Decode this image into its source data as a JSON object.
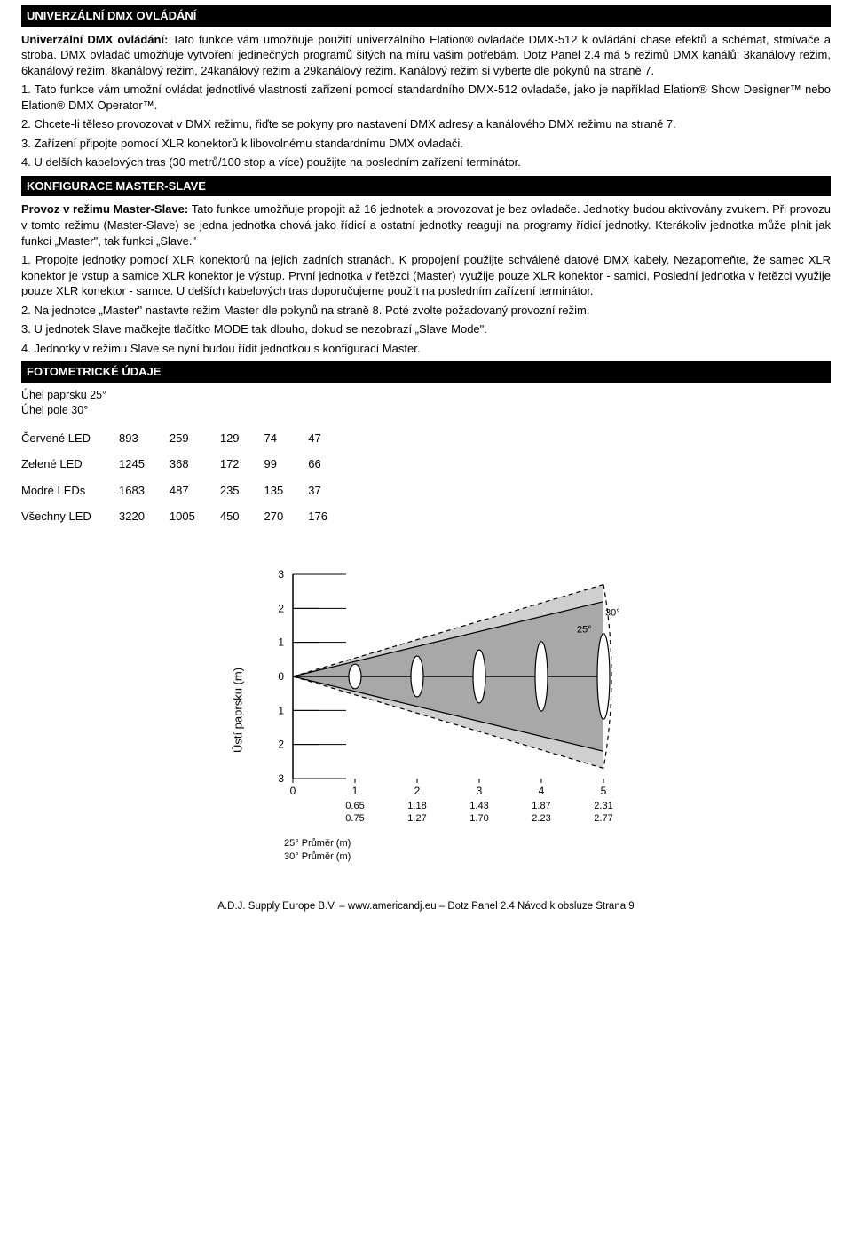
{
  "section1": {
    "title": "UNIVERZÁLNÍ DMX OVLÁDÁNÍ",
    "p1_lead": "Univerzální DMX ovládání:",
    "p1": " Tato funkce vám umožňuje použití univerzálního Elation® ovladače DMX-512 k ovládání chase efektů a schémat, stmívače a stroba. DMX ovladač umožňuje vytvoření jedinečných programů šitých na míru vašim potřebám. Dotz Panel 2.4 má 5 režimů DMX kanálů: 3kanálový režim, 6kanálový režim, 8kanálový režim, 24kanálový režim a 29kanálový režim. Kanálový režim si vyberte dle pokynů na straně 7.",
    "p2": "1. Tato funkce vám umožní ovládat jednotlivé vlastnosti zařízení pomocí standardního DMX-512 ovladače, jako je například Elation® Show Designer™ nebo Elation® DMX Operator™.",
    "p3": "2. Chcete-li těleso provozovat v DMX režimu, řiďte se pokyny pro nastavení DMX adresy a kanálového DMX režimu na straně 7.",
    "p4": "3. Zařízení připojte pomocí XLR konektorů k libovolnému standardnímu DMX ovladači.",
    "p5": "4. U delších kabelových tras (30 metrů/100 stop a více) použijte na posledním zařízení terminátor."
  },
  "section2": {
    "title": "KONFIGURACE MASTER-SLAVE",
    "p1_lead": "Provoz v režimu Master-Slave:",
    "p1": " Tato funkce umožňuje propojit až 16 jednotek a provozovat je bez ovladače. Jednotky budou aktivovány zvukem. Při provozu v tomto režimu (Master-Slave) se jedna jednotka chová jako řídicí a ostatní jednotky reagují na programy řídicí jednotky. Kterákoliv jednotka může plnit jak funkci „Master\", tak funkci „Slave.\"",
    "p2": "1. Propojte jednotky pomocí XLR konektorů na jejich zadních stranách. K propojení použijte schválené datové DMX kabely. Nezapomeňte, že samec XLR konektor je vstup a samice XLR konektor je výstup. První jednotka v řetězci (Master) využije pouze XLR konektor - samici. Poslední jednotka v řetězci využije pouze XLR konektor - samce. U delších kabelových tras doporučujeme použít na posledním zařízení terminátor.",
    "p3": "2. Na jednotce „Master\" nastavte režim Master dle pokynů na straně 8. Poté zvolte požadovaný provozní režim.",
    "p4": "3. U jednotek Slave mačkejte tlačítko MODE tak dlouho, dokud se nezobrazí „Slave Mode\".",
    "p5": "4. Jednotky v režimu Slave se nyní budou řídit jednotkou s konfigurací Master."
  },
  "section3": {
    "title": "FOTOMETRICKÉ ÚDAJE",
    "angle1": "Úhel paprsku 25°",
    "angle2": "Úhel pole 30°",
    "table": {
      "rows": [
        {
          "label": "Červené LED",
          "v": [
            "893",
            "259",
            "129",
            "74",
            "47"
          ]
        },
        {
          "label": "Zelené LED",
          "v": [
            "1245",
            "368",
            "172",
            "99",
            "66"
          ]
        },
        {
          "label": "Modré LEDs",
          "v": [
            "1683",
            "487",
            "235",
            "135",
            "37"
          ]
        },
        {
          "label": "Všechny LED",
          "v": [
            "3220",
            "1005",
            "450",
            "270",
            "176"
          ]
        }
      ]
    }
  },
  "diagram": {
    "y_label": "Ústí paprsku (m)",
    "y_ticks": [
      "3",
      "2",
      "1",
      "0",
      "1",
      "2",
      "3"
    ],
    "x_ticks": [
      "0",
      "1",
      "2",
      "3",
      "4",
      "5"
    ],
    "lens_x": [
      1,
      2,
      3,
      4,
      5
    ],
    "lens_ry": [
      6,
      10,
      13,
      17,
      21
    ],
    "angle25": "25°",
    "angle30": "30°",
    "legend1_label": "25° Průměr (m)",
    "legend1_vals": [
      "0.65",
      "1.18",
      "1.43",
      "1.87",
      "2.31"
    ],
    "legend2_label": "30° Průměr (m)",
    "legend2_vals": [
      "0.75",
      "1.27",
      "1.70",
      "2.23",
      "2.77"
    ],
    "colors": {
      "bg_light": "#cfcfcf",
      "bg_mid": "#a8a8a8",
      "stroke": "#000000"
    }
  },
  "footer": "A.D.J. Supply Europe B.V. – www.americandj.eu – Dotz Panel 2.4 Návod k obsluze Strana 9"
}
